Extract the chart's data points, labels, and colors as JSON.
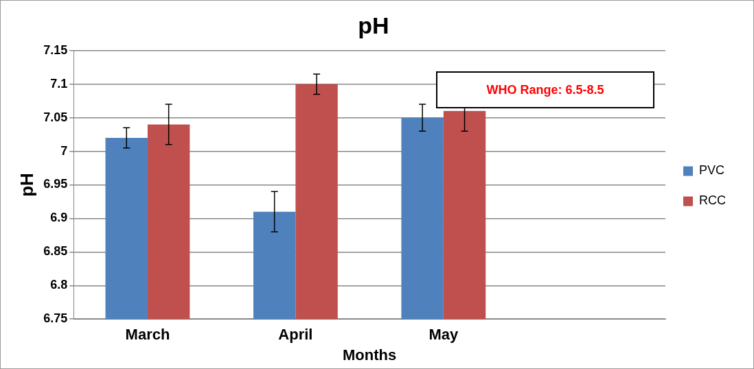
{
  "chart_data": {
    "type": "bar",
    "title": "pH",
    "xlabel": "Months",
    "ylabel": "pH",
    "categories": [
      "March",
      "April",
      "May",
      null
    ],
    "series": [
      {
        "name": "PVC",
        "color": "#4f81bd",
        "values": [
          7.02,
          6.91,
          7.05,
          null
        ],
        "errors": [
          0.015,
          0.03,
          0.02,
          null
        ]
      },
      {
        "name": "RCC",
        "color": "#c0504d",
        "values": [
          7.04,
          7.1,
          7.06,
          null
        ],
        "errors": [
          0.03,
          0.015,
          0.03,
          null
        ]
      }
    ],
    "ylim": [
      6.75,
      7.15
    ],
    "yticks": [
      6.75,
      6.8,
      6.85,
      6.9,
      6.95,
      7,
      7.05,
      7.1,
      7.15
    ],
    "grid": "y",
    "legend": "right",
    "annotations": [
      "WHO Range: 6.5-8.5"
    ]
  }
}
